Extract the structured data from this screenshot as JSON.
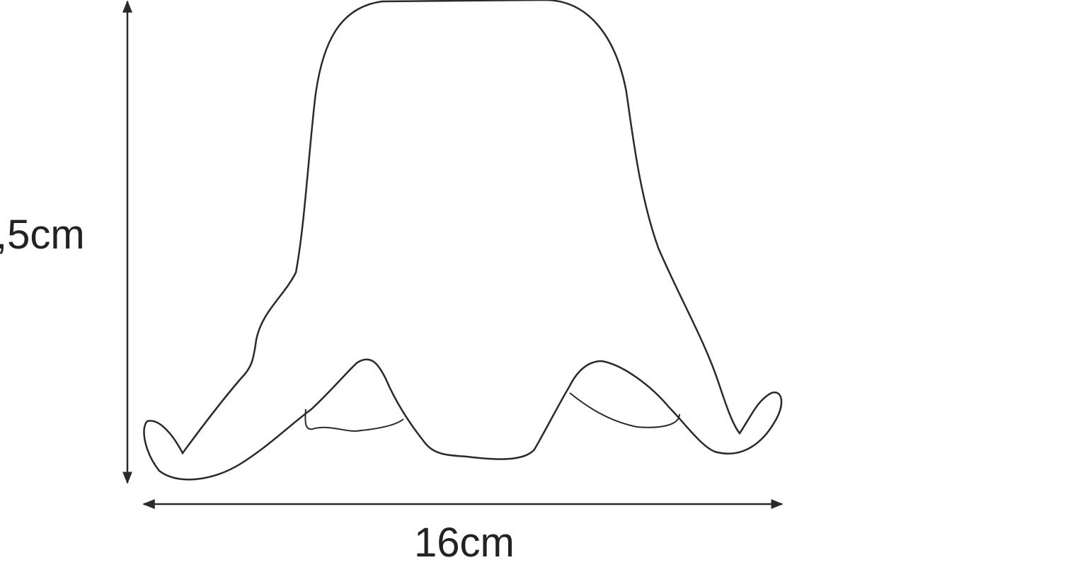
{
  "dimensions": {
    "height_label": ",5cm",
    "width_label": "16cm"
  },
  "colors": {
    "line": "#2a2a2a",
    "background": "#ffffff"
  }
}
